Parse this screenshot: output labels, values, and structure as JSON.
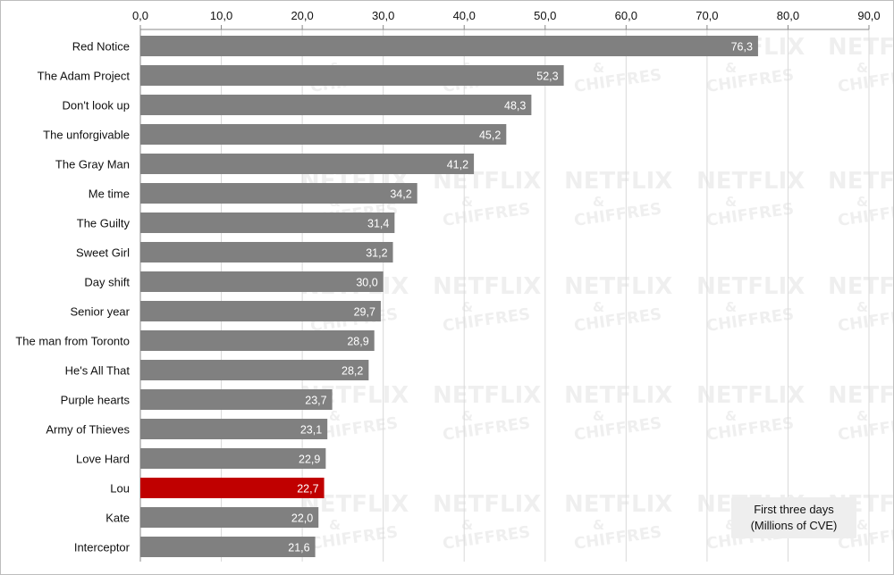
{
  "chart_data": {
    "type": "bar",
    "orientation": "horizontal",
    "categories": [
      "Red Notice",
      "The Adam Project",
      "Don't look up",
      "The unforgivable",
      "The Gray Man",
      "Me time",
      "The Guilty",
      "Sweet Girl",
      "Day shift",
      "Senior year",
      "The man from Toronto",
      "He's All That",
      "Purple hearts",
      "Army of Thieves",
      "Love Hard",
      "Lou",
      "Kate",
      "Interceptor"
    ],
    "values": [
      76.3,
      52.3,
      48.3,
      45.2,
      41.2,
      34.2,
      31.4,
      31.2,
      30.0,
      29.7,
      28.9,
      28.2,
      23.7,
      23.1,
      22.9,
      22.7,
      22.0,
      21.6
    ],
    "value_labels": [
      "76,3",
      "52,3",
      "48,3",
      "45,2",
      "41,2",
      "34,2",
      "31,4",
      "31,2",
      "30,0",
      "29,7",
      "28,9",
      "28,2",
      "23,7",
      "23,1",
      "22,9",
      "22,7",
      "22,0",
      "21,6"
    ],
    "highlight_category": "Lou",
    "xlim": [
      0,
      90
    ],
    "x_ticks": [
      "0,0",
      "10,0",
      "20,0",
      "30,0",
      "40,0",
      "50,0",
      "60,0",
      "70,0",
      "80,0",
      "90,0"
    ],
    "x_axis_position": "top",
    "grid": true,
    "bar_color": "#808080",
    "highlight_color": "#c00000",
    "legend": {
      "line1": "First three days",
      "line2": "(Millions of CVE)",
      "position": "bottom-right"
    },
    "watermark": {
      "line1": "NETFLIX",
      "line2": "&",
      "line3": "CHIFFRES"
    }
  }
}
